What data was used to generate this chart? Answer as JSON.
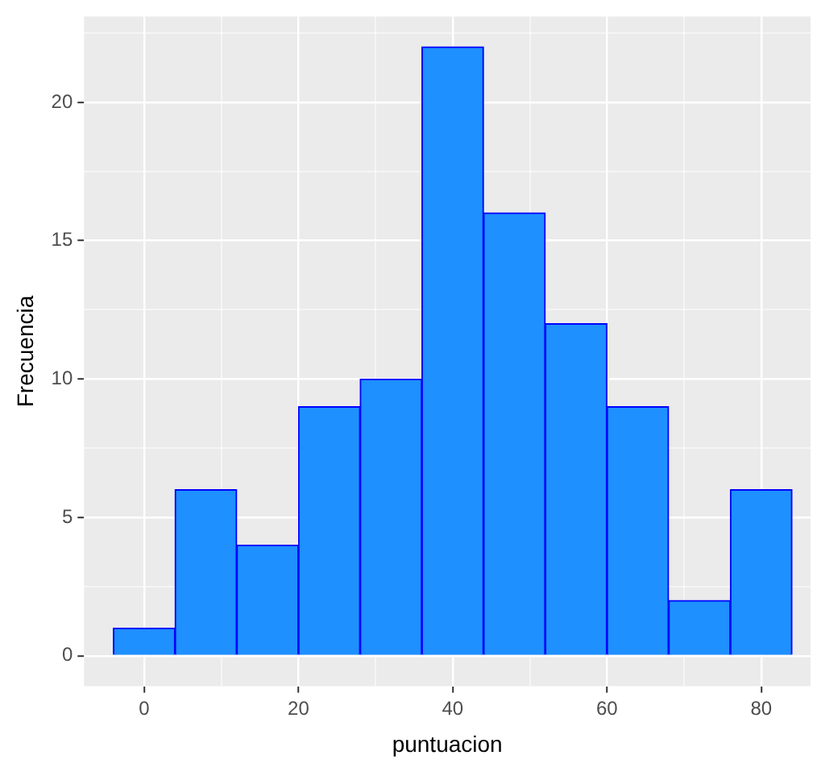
{
  "chart_data": {
    "type": "histogram",
    "xlabel": "puntuacion",
    "ylabel": "Frecuencia",
    "bins": [
      -4,
      4,
      12,
      20,
      28,
      36,
      44,
      52,
      60,
      68,
      76,
      84
    ],
    "values": [
      1,
      6,
      4,
      9,
      10,
      22,
      16,
      12,
      9,
      2,
      6
    ],
    "color": "#1e90ff",
    "xlim": [
      -7.8,
      86.4
    ],
    "ylim": [
      -1.1,
      23.1
    ],
    "xticks": [
      0,
      {
        "value": 10,
        "label": null
      },
      20,
      {
        "value": 30,
        "label": null
      },
      40,
      {
        "value": 50,
        "label": null
      },
      60,
      {
        "value": 70,
        "label": null
      },
      80
    ],
    "yticks": [
      0,
      {
        "value": 2.5,
        "label": null
      },
      5,
      {
        "value": 7.5,
        "label": null
      },
      10,
      {
        "value": 12.5,
        "label": null
      },
      15,
      {
        "value": 17.5,
        "label": null
      },
      20,
      {
        "value": 22.5,
        "label": null
      }
    ],
    "grid": true,
    "legend": false
  }
}
